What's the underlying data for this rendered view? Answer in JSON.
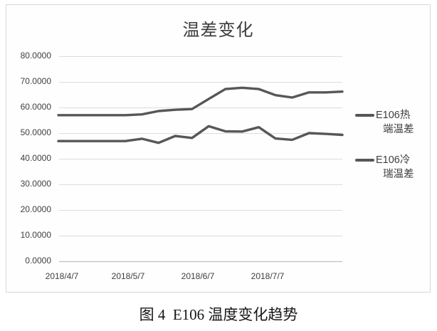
{
  "page": {
    "caption": "图 4  E106 温度变化趋势"
  },
  "chart_data": {
    "type": "line",
    "title": "温差变化",
    "xlabel": "",
    "ylabel": "",
    "ylim": [
      0,
      80
    ],
    "y_tick_labels": [
      "80.0000",
      "70.0000",
      "60.0000",
      "50.0000",
      "40.0000",
      "30.0000",
      "20.0000",
      "10.0000",
      "0.0000"
    ],
    "x_tick_labels": [
      "2018/4/7",
      "2018/5/7",
      "2018/6/7",
      "2018/7/7"
    ],
    "grid": true,
    "legend_position": "right",
    "series": [
      {
        "name": "E106热端温差",
        "legend_lines": [
          "E106热",
          "端温差"
        ],
        "values": [
          57.0,
          57.0,
          57.0,
          57.0,
          57.0,
          57.3,
          58.6,
          59.1,
          59.4,
          63.3,
          67.2,
          67.7,
          67.2,
          64.8,
          63.9,
          65.9,
          65.9,
          66.2
        ]
      },
      {
        "name": "E106冷瑞温差",
        "legend_lines": [
          "E106冷",
          "瑞温差"
        ],
        "values": [
          46.9,
          46.9,
          46.9,
          46.9,
          46.9,
          47.8,
          46.2,
          48.9,
          48.1,
          52.7,
          50.7,
          50.6,
          52.3,
          47.9,
          47.4,
          50.0,
          49.7,
          49.3
        ]
      }
    ],
    "colors": {
      "line": "#575757",
      "grid": "#dcdcdc",
      "axis": "#bfbfbf",
      "tick_text": "#3f3f3f",
      "title_text": "#3c3c3c"
    }
  }
}
